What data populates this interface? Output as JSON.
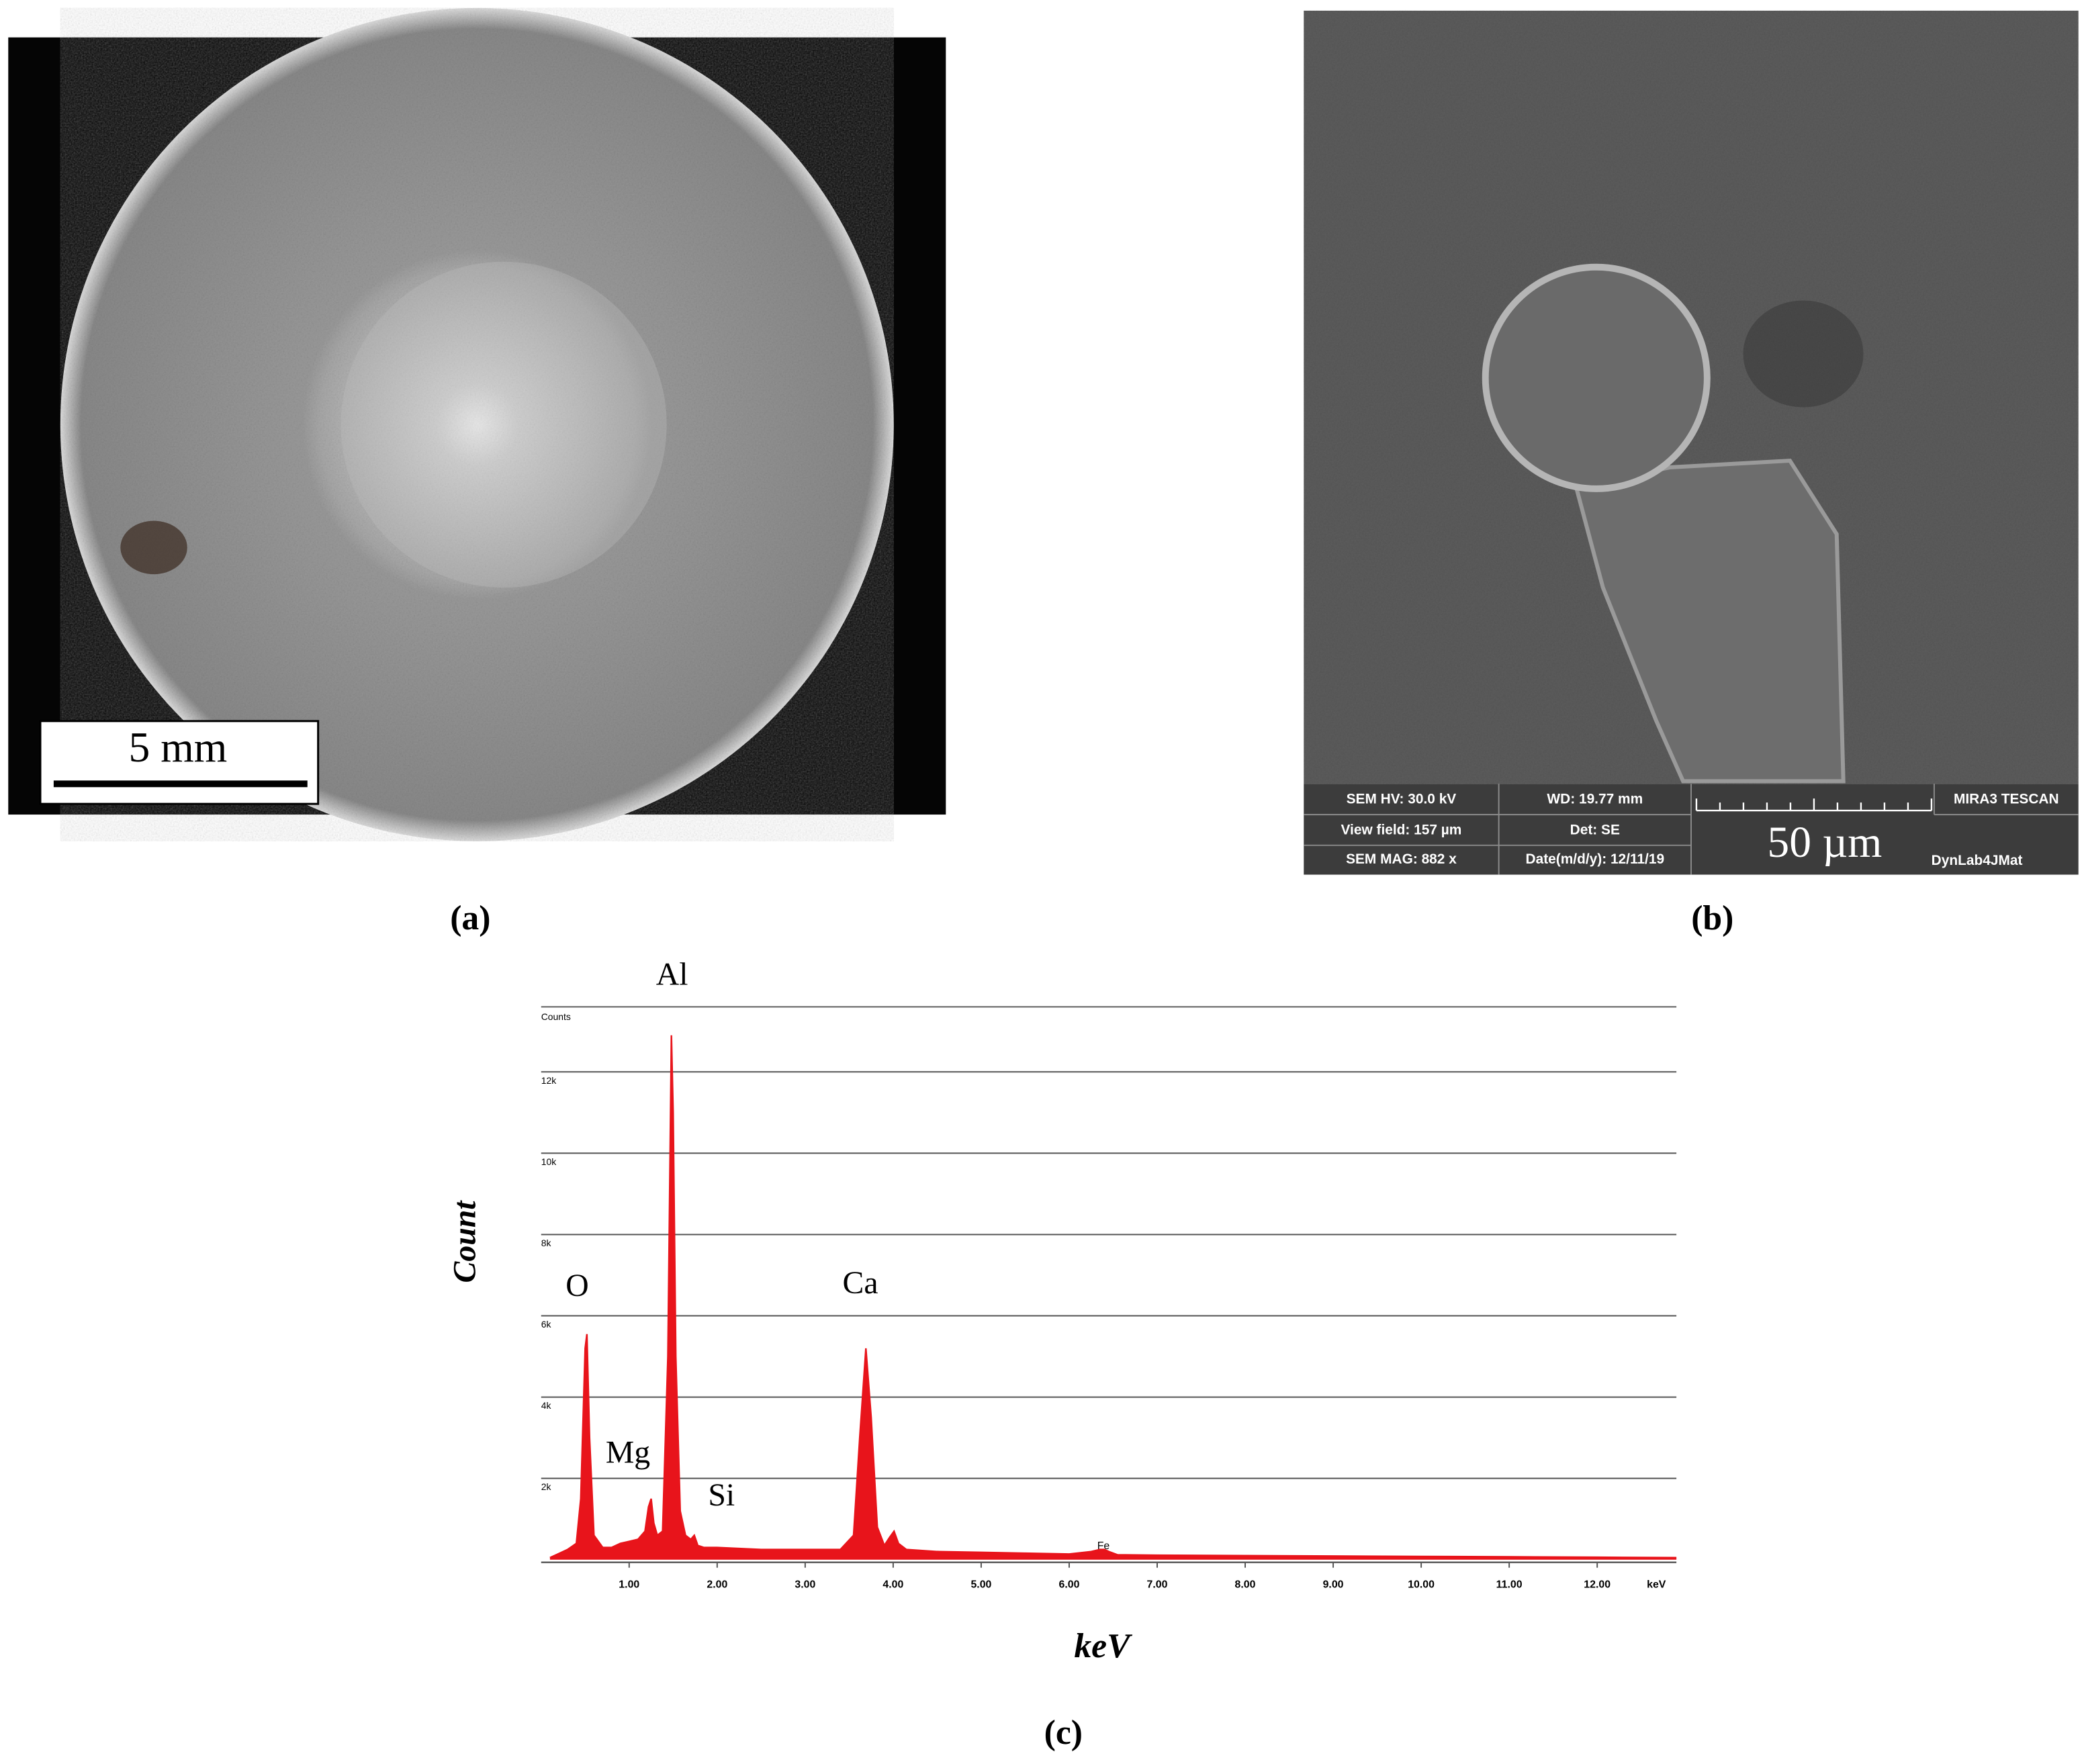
{
  "panel_a": {
    "scale_bar": "5 mm",
    "caption": "(a)"
  },
  "panel_b": {
    "info": {
      "hv": "SEM HV: 30.0 kV",
      "wd": "WD: 19.77 mm",
      "brand": "MIRA3 TESCAN",
      "view_field": "View field: 157 µm",
      "det": "Det: SE",
      "scale": "50 µm",
      "mag": "SEM MAG: 882 x",
      "date": "Date(m/d/y): 12/11/19",
      "lab": "DynLab4JMat"
    },
    "caption": "(b)"
  },
  "chart_data": {
    "type": "area",
    "x_label": "keV",
    "y_label": "Count",
    "y_unit_label": "Counts",
    "x_unit_label": "keV",
    "caption": "(c)",
    "annotations": [
      "Al",
      "O",
      "Ca",
      "Mg",
      "Si",
      "Fe"
    ],
    "color": "#e8141b",
    "x": [
      0.1,
      0.2,
      0.3,
      0.4,
      0.45,
      0.5,
      0.52,
      0.55,
      0.6,
      0.7,
      0.8,
      0.9,
      1.0,
      1.1,
      1.18,
      1.22,
      1.25,
      1.28,
      1.32,
      1.38,
      1.44,
      1.48,
      1.5,
      1.53,
      1.58,
      1.64,
      1.7,
      1.74,
      1.78,
      1.85,
      2.0,
      2.5,
      3.0,
      3.4,
      3.55,
      3.62,
      3.69,
      3.75,
      3.82,
      3.9,
      3.96,
      4.01,
      4.06,
      4.15,
      4.5,
      5.0,
      5.5,
      6.0,
      6.25,
      6.35,
      6.4,
      6.45,
      6.55,
      7.0,
      8.0,
      9.0,
      10.0,
      11.0,
      12.0,
      12.9
    ],
    "values": [
      50,
      150,
      250,
      400,
      1500,
      5200,
      5550,
      3000,
      600,
      300,
      300,
      400,
      450,
      500,
      700,
      1300,
      1500,
      900,
      600,
      700,
      5000,
      12900,
      11000,
      5000,
      1200,
      600,
      500,
      600,
      350,
      300,
      300,
      250,
      250,
      250,
      600,
      3000,
      5200,
      3500,
      800,
      350,
      550,
      700,
      400,
      250,
      200,
      180,
      160,
      140,
      200,
      250,
      250,
      200,
      120,
      110,
      100,
      90,
      80,
      70,
      60,
      50
    ],
    "xlim": [
      0,
      12.9
    ],
    "ylim": [
      0,
      13600
    ],
    "xticks": [
      {
        "value": 1,
        "label": "1.00"
      },
      {
        "value": 2,
        "label": "2.00"
      },
      {
        "value": 3,
        "label": "3.00"
      },
      {
        "value": 4,
        "label": "4.00"
      },
      {
        "value": 5,
        "label": "5.00"
      },
      {
        "value": 6,
        "label": "6.00"
      },
      {
        "value": 7,
        "label": "7.00"
      },
      {
        "value": 8,
        "label": "8.00"
      },
      {
        "value": 9,
        "label": "9.00"
      },
      {
        "value": 10,
        "label": "10.00"
      },
      {
        "value": 11,
        "label": "11.00"
      },
      {
        "value": 12,
        "label": "12.00"
      }
    ],
    "yticks": [
      {
        "value": 2000,
        "label": "2k"
      },
      {
        "value": 4000,
        "label": "4k"
      },
      {
        "value": 6000,
        "label": "6k"
      },
      {
        "value": 8000,
        "label": "8k"
      },
      {
        "value": 10000,
        "label": "10k"
      },
      {
        "value": 12000,
        "label": "12k"
      }
    ],
    "grid": true
  }
}
